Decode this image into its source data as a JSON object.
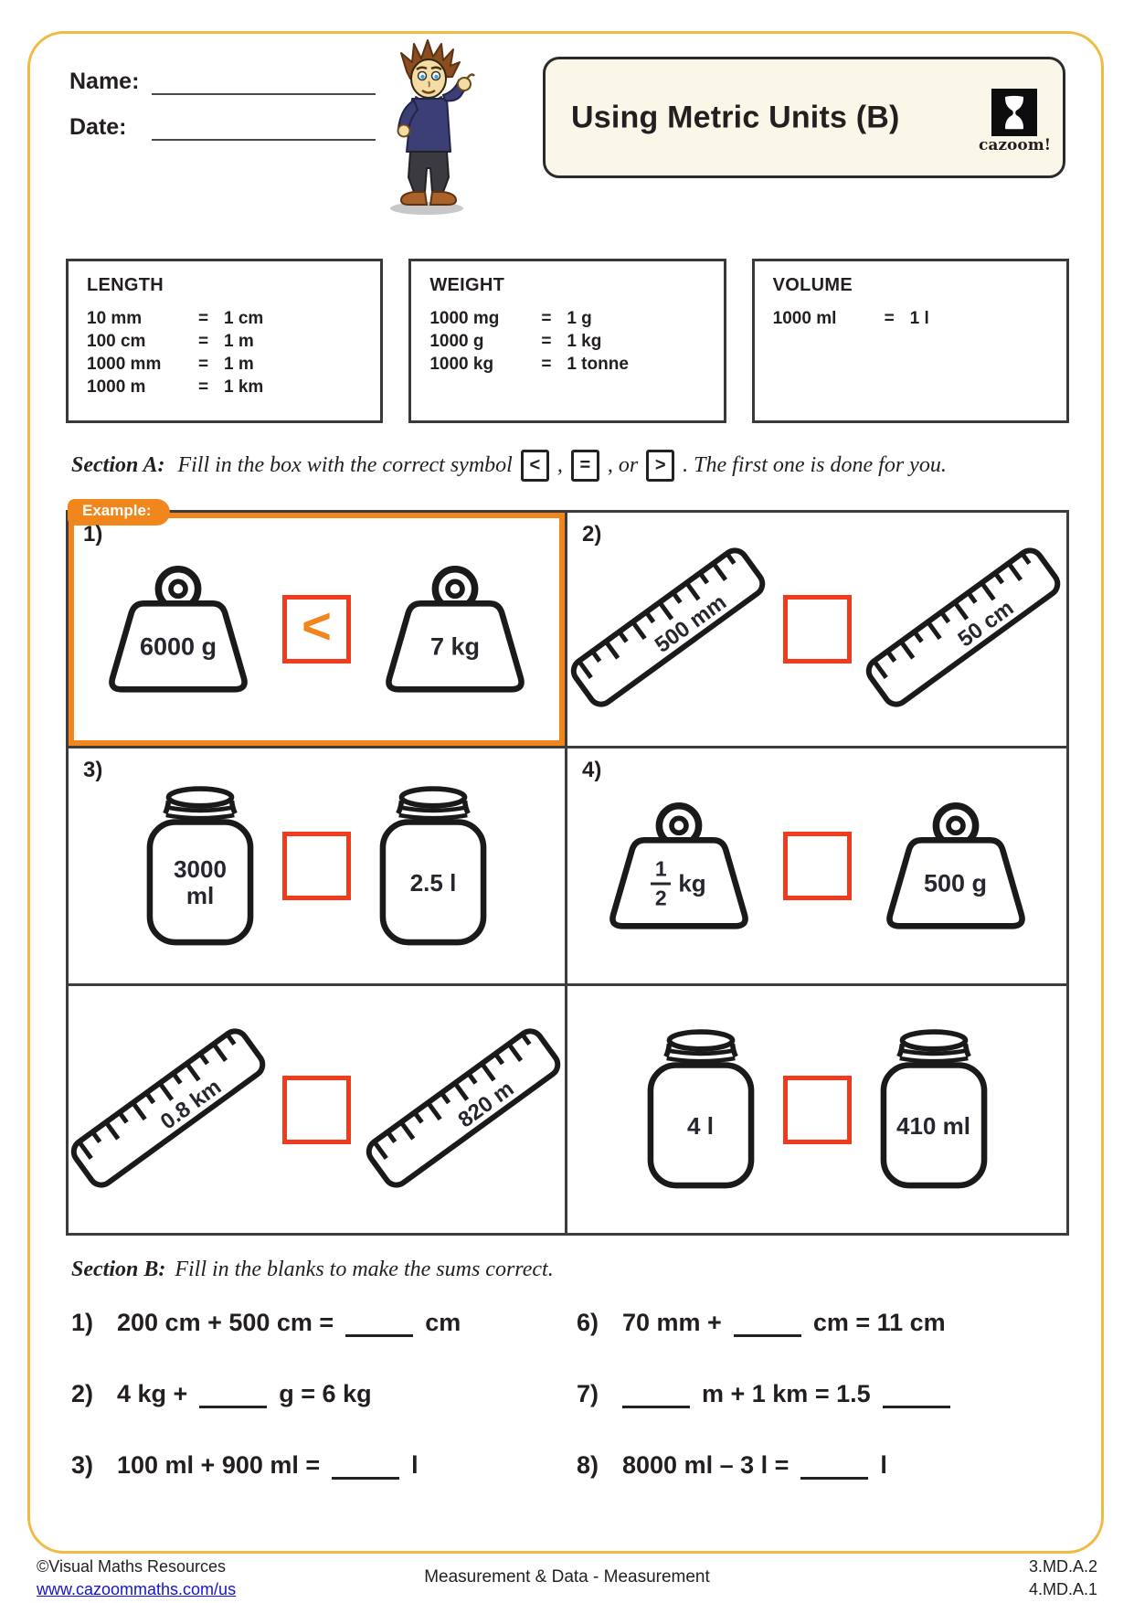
{
  "header": {
    "name_label": "Name:",
    "date_label": "Date:",
    "title": "Using Metric Units (B)",
    "logo_text": "cazoom!"
  },
  "reference": {
    "boxes": [
      {
        "title": "LENGTH",
        "rows": [
          [
            "10 mm",
            "=",
            "1 cm"
          ],
          [
            "100 cm",
            "=",
            "1 m"
          ],
          [
            "1000 mm",
            "=",
            "1 m"
          ],
          [
            "1000 m",
            "=",
            "1 km"
          ]
        ]
      },
      {
        "title": "WEIGHT",
        "rows": [
          [
            "1000 mg",
            "=",
            "1 g"
          ],
          [
            "1000 g",
            "=",
            "1 kg"
          ],
          [
            "1000 kg",
            "=",
            "1 tonne"
          ]
        ]
      },
      {
        "title": "VOLUME",
        "rows": [
          [
            "1000 ml",
            "=",
            "1 l"
          ]
        ]
      }
    ]
  },
  "section_a": {
    "label": "Section A:",
    "instruction_tokens": [
      {
        "text": "Fill in the box with the correct symbol"
      },
      {
        "symbol": "<"
      },
      {
        "text": ","
      },
      {
        "symbol": "="
      },
      {
        "text": ", or"
      },
      {
        "symbol": ">"
      },
      {
        "text": ". The first one is done for you."
      }
    ],
    "example_tab": "Example:",
    "problems": [
      {
        "number": "1)",
        "item": "weight",
        "left": {
          "lines": [
            "6000 g"
          ]
        },
        "right": {
          "lines": [
            "7 kg"
          ]
        },
        "answer": "<",
        "example": true
      },
      {
        "number": "2)",
        "item": "ruler",
        "left": {
          "lines": [
            "500 mm"
          ]
        },
        "right": {
          "lines": [
            "50 cm"
          ]
        },
        "answer": ""
      },
      {
        "number": "3)",
        "item": "jar",
        "left": {
          "lines": [
            "3000",
            "ml"
          ]
        },
        "right": {
          "lines": [
            "2.5 l"
          ]
        },
        "answer": ""
      },
      {
        "number": "4)",
        "item": "weight",
        "left": {
          "fraction": {
            "num": "1",
            "den": "2",
            "unit": "kg"
          }
        },
        "right": {
          "lines": [
            "500 g"
          ]
        },
        "answer": ""
      },
      {
        "number": "",
        "item": "ruler",
        "left": {
          "lines": [
            "0.8 km"
          ]
        },
        "right": {
          "lines": [
            "820 m"
          ]
        },
        "answer": ""
      },
      {
        "number": "",
        "item": "jar",
        "left": {
          "lines": [
            "4 l"
          ]
        },
        "right": {
          "lines": [
            "410 ml"
          ]
        },
        "answer": ""
      }
    ]
  },
  "section_b": {
    "label": "Section B:",
    "instruction": "Fill in the blanks to make the sums correct.",
    "columns": [
      [
        {
          "number": "1)",
          "tokens": [
            {
              "text": "200 cm + 500 cm ="
            },
            {
              "blank": true
            },
            {
              "text": "cm"
            }
          ]
        },
        {
          "number": "2)",
          "tokens": [
            {
              "text": "4 kg +"
            },
            {
              "blank": true
            },
            {
              "text": "g = 6 kg"
            }
          ]
        },
        {
          "number": "3)",
          "tokens": [
            {
              "text": "100 ml + 900 ml ="
            },
            {
              "blank": true
            },
            {
              "text": "l"
            }
          ]
        }
      ],
      [
        {
          "number": "6)",
          "tokens": [
            {
              "text": "70 mm +"
            },
            {
              "blank": true
            },
            {
              "text": "cm = 11 cm"
            }
          ]
        },
        {
          "number": "7)",
          "tokens": [
            {
              "blank": true
            },
            {
              "text": "m + 1 km = 1.5"
            },
            {
              "blank": true
            }
          ]
        },
        {
          "number": "8)",
          "tokens": [
            {
              "text": "8000 ml – 3 l ="
            },
            {
              "blank": true
            },
            {
              "text": "l"
            }
          ]
        }
      ]
    ]
  },
  "footer": {
    "copyright": "©Visual Maths Resources",
    "url": "www.cazoommaths.com/us",
    "center": "Measurement & Data - Measurement",
    "codes": [
      "3.MD.A.2",
      "4.MD.A.1"
    ]
  },
  "colors": {
    "accent_orange": "#F0861C",
    "answer_box_red": "#F23B1D",
    "page_border_yellow": "#EFBB45",
    "link_blue": "#1414CE"
  }
}
